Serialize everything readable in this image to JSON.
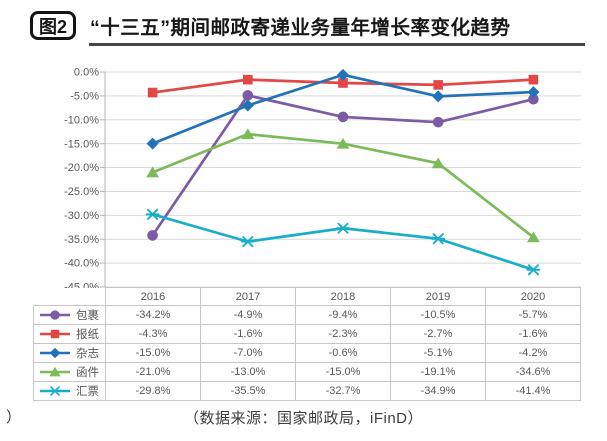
{
  "header": {
    "figure_label": "图2",
    "title": "“十三五”期间邮政寄递业务量年增长率变化趋势"
  },
  "footer": {
    "source_note": "（数据来源：国家邮政局，iFinD）",
    "stray_text": "）"
  },
  "chart_data": {
    "type": "line",
    "title": "“十三五”期间邮政寄递业务量年增长率变化趋势",
    "categories": [
      "2016",
      "2017",
      "2018",
      "2019",
      "2020"
    ],
    "series": [
      {
        "name": "包裹",
        "marker": "circle",
        "color": "#7C5BA5",
        "values": [
          -34.2,
          -4.9,
          -9.4,
          -10.5,
          -5.7
        ],
        "labels": [
          "-34.2%",
          "-4.9%",
          "-9.4%",
          "-10.5%",
          "-5.7%"
        ]
      },
      {
        "name": "报纸",
        "marker": "square",
        "color": "#E14745",
        "values": [
          -4.3,
          -1.6,
          -2.3,
          -2.7,
          -1.6
        ],
        "labels": [
          "-4.3%",
          "-1.6%",
          "-2.3%",
          "-2.7%",
          "-1.6%"
        ]
      },
      {
        "name": "杂志",
        "marker": "diamond",
        "color": "#2272BB",
        "values": [
          -15.0,
          -7.0,
          -0.6,
          -5.1,
          -4.2
        ],
        "labels": [
          "-15.0%",
          "-7.0%",
          "-0.6%",
          "-5.1%",
          "-4.2%"
        ]
      },
      {
        "name": "函件",
        "marker": "triangle",
        "color": "#7CBB59",
        "values": [
          -21.0,
          -13.0,
          -15.0,
          -19.1,
          -34.6
        ],
        "labels": [
          "-21.0%",
          "-13.0%",
          "-15.0%",
          "-19.1%",
          "-34.6%"
        ]
      },
      {
        "name": "汇票",
        "marker": "xline",
        "color": "#18ADC9",
        "values": [
          -29.8,
          -35.5,
          -32.7,
          -34.9,
          -41.4
        ],
        "labels": [
          "-29.8%",
          "-35.5%",
          "-32.7%",
          "-34.9%",
          "-41.4%"
        ]
      }
    ],
    "xlabel": "",
    "ylabel": "",
    "ylim": [
      -45,
      0
    ],
    "ytick_step": 5,
    "ytick_labels": [
      "0.0%",
      "-5.0%",
      "-10.0%",
      "-15.0%",
      "-20.0%",
      "-25.0%",
      "-30.0%",
      "-35.0%",
      "-40.0%",
      "-45.0%"
    ],
    "grid": true,
    "legend_position": "data-table-left",
    "style": {
      "grid_color": "#d9d9d9",
      "axis_color": "#b5b5b5",
      "tick_label_color": "#595959",
      "table_border_color": "#c6c6c6",
      "table_text_color": "#595959"
    }
  }
}
